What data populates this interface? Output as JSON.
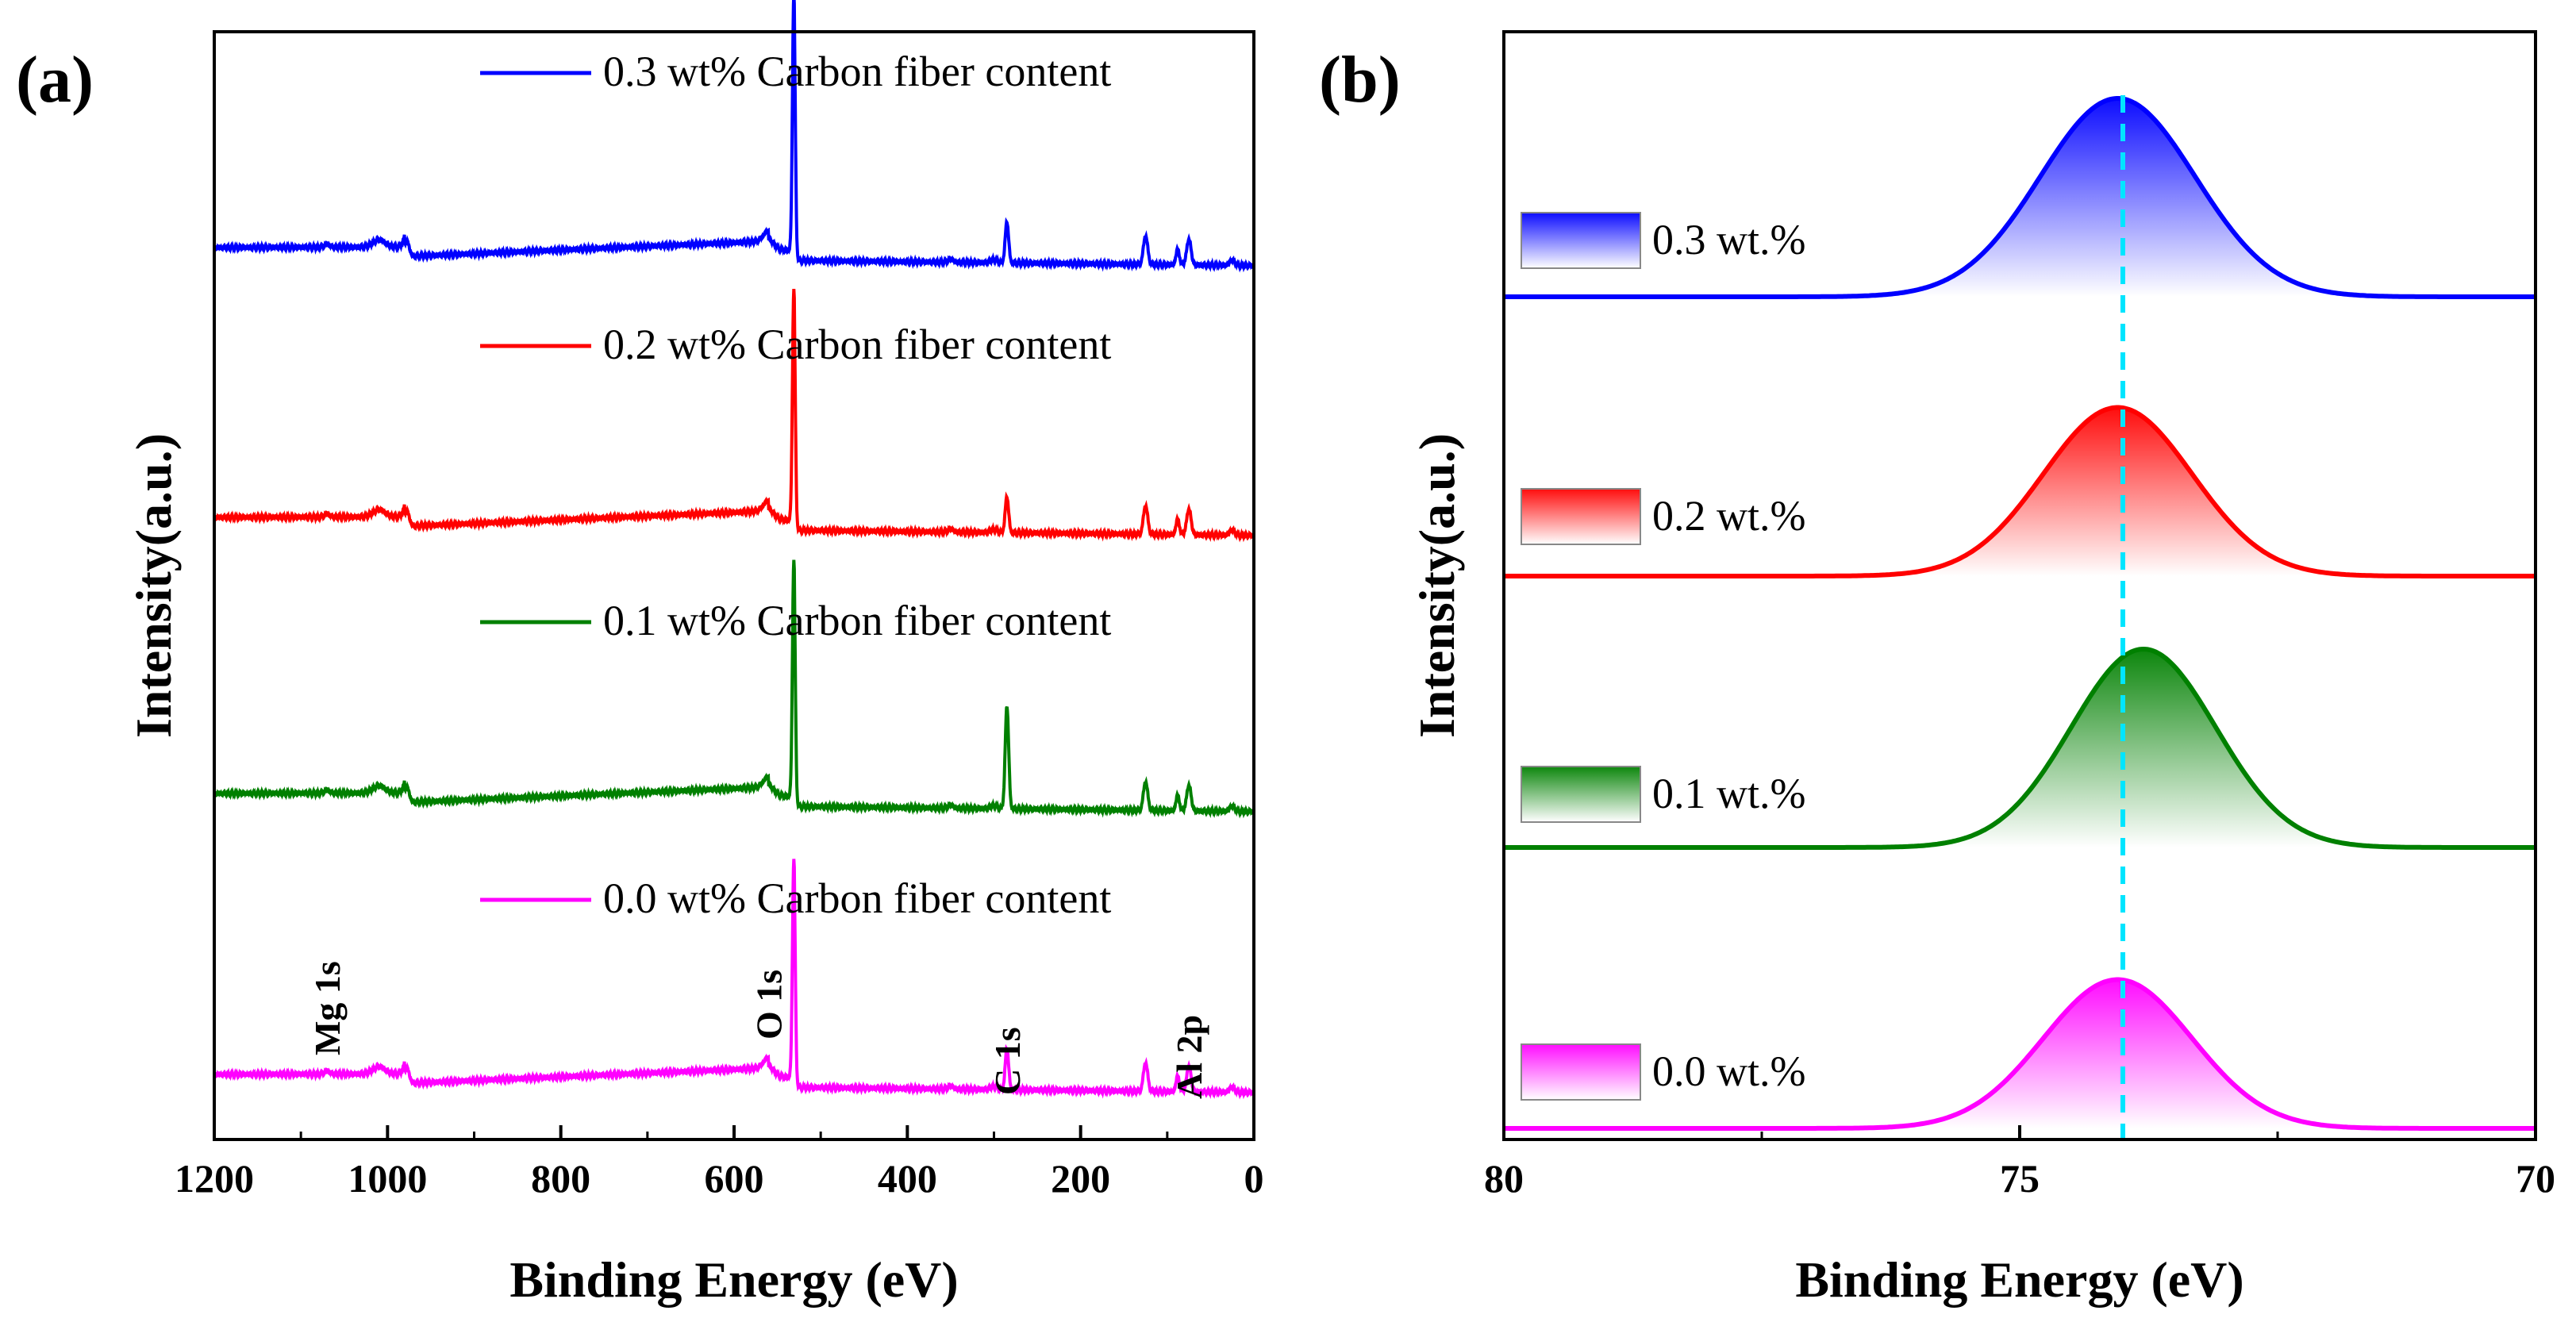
{
  "chart_data": [
    {
      "panel": "(a)",
      "type": "line",
      "xlabel": "Binding Energy (eV)",
      "ylabel": "Intensity(a.u.)",
      "xlim": [
        1200,
        0
      ],
      "x_reversed": true,
      "yticks_shown": false,
      "xticks": [
        1200,
        1000,
        800,
        600,
        400,
        200,
        0
      ],
      "xtick_labels": [
        "1200",
        "1000",
        "800",
        "600",
        "400",
        "200",
        "0"
      ],
      "legend_placement": "stacked beside each trace, top-right",
      "series": [
        {
          "name": "0.3 wt% Carbon fiber content",
          "color": "#0000ff",
          "offset": 3,
          "o1s_height": 1.0,
          "c1s_height": 0.16
        },
        {
          "name": "0.2 wt% Carbon fiber content",
          "color": "#ff0000",
          "offset": 2,
          "o1s_height": 0.9,
          "c1s_height": 0.14
        },
        {
          "name": "0.1 wt% Carbon fiber content",
          "color": "#008000",
          "offset": 1,
          "o1s_height": 0.92,
          "c1s_height": 0.4
        },
        {
          "name": "0.0 wt% Carbon fiber content",
          "color": "#ff00ff",
          "offset": 0,
          "o1s_height": 0.85,
          "c1s_height": 0.16
        }
      ],
      "annotations": [
        {
          "text": "Mg 1s",
          "x": 1070
        },
        {
          "text": "O 1s",
          "x": 560
        },
        {
          "text": "C 1s",
          "x": 285
        },
        {
          "text": "Al 2p",
          "x": 75
        }
      ]
    },
    {
      "panel": "(b)",
      "type": "area",
      "xlabel": "Binding Energy (eV)",
      "ylabel": "Intensity(a.u.)",
      "xlim": [
        80,
        70
      ],
      "x_reversed": true,
      "yticks_shown": false,
      "xticks": [
        80,
        75,
        70
      ],
      "xtick_labels": [
        "80",
        "75",
        "70"
      ],
      "minor_xticks": [
        77.5,
        72.5
      ],
      "reference_line_x": 74.0,
      "reference_line_color": "#00e5ff",
      "series": [
        {
          "name": "0.3 wt.%",
          "color": "#0000ff",
          "center": 74.05,
          "sigma": 0.75,
          "peak": 1.0,
          "offset": 3
        },
        {
          "name": "0.2 wt.%",
          "color": "#ff0000",
          "center": 74.05,
          "sigma": 0.72,
          "peak": 0.85,
          "offset": 2
        },
        {
          "name": "0.1 wt.%",
          "color": "#008000",
          "center": 73.8,
          "sigma": 0.7,
          "peak": 1.0,
          "offset": 1
        },
        {
          "name": "0.0 wt.%",
          "color": "#ff00ff",
          "center": 74.05,
          "sigma": 0.72,
          "peak": 0.75,
          "offset": 0
        }
      ]
    }
  ]
}
